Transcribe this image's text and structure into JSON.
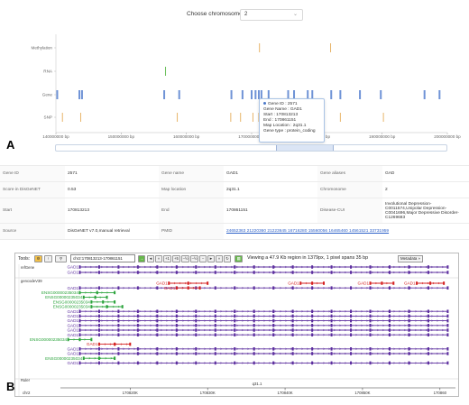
{
  "chrom_select": {
    "label": "Choose chromosome",
    "value": "2"
  },
  "tracks": [
    {
      "name": "Methylation",
      "color": "#e8b56a",
      "marks": [
        {
          "x": 171.2,
          "h": 1
        },
        {
          "x": 182.1,
          "h": 1
        }
      ]
    },
    {
      "name": "RNA",
      "color": "#6cc05b",
      "marks": [
        {
          "x": 156.8,
          "h": 1
        }
      ]
    },
    {
      "name": "Gene",
      "color": "#6f93d6",
      "marks": [
        {
          "x": 140.2,
          "h": 1
        },
        {
          "x": 143.6,
          "h": 1
        },
        {
          "x": 144.0,
          "h": 1
        },
        {
          "x": 156.6,
          "h": 1
        },
        {
          "x": 158.9,
          "h": 1
        },
        {
          "x": 166.9,
          "h": 1
        },
        {
          "x": 168.6,
          "h": 1
        },
        {
          "x": 170.0,
          "h": 1
        },
        {
          "x": 170.6,
          "h": 1
        },
        {
          "x": 171.1,
          "h": 1
        },
        {
          "x": 171.5,
          "h": 1
        },
        {
          "x": 172.6,
          "h": 1
        },
        {
          "x": 175.6,
          "h": 1
        },
        {
          "x": 176.5,
          "h": 1
        },
        {
          "x": 178.6,
          "h": 1
        },
        {
          "x": 179.3,
          "h": 1
        },
        {
          "x": 182.2,
          "h": 1
        },
        {
          "x": 183.6,
          "h": 1
        },
        {
          "x": 186.6,
          "h": 1
        },
        {
          "x": 189.8,
          "h": 1
        },
        {
          "x": 196.5,
          "h": 1
        },
        {
          "x": 198.8,
          "h": 1
        }
      ]
    },
    {
      "name": "SNP",
      "color": "#e8b56a",
      "marks": [
        {
          "x": 141.0,
          "h": 1
        },
        {
          "x": 143.8,
          "h": 1
        },
        {
          "x": 158.6,
          "h": 1
        },
        {
          "x": 166.8,
          "h": 1
        },
        {
          "x": 168.3,
          "h": 1
        },
        {
          "x": 170.2,
          "h": 1
        },
        {
          "x": 171.1,
          "h": 1
        },
        {
          "x": 176.3,
          "h": 1
        },
        {
          "x": 179.4,
          "h": 1
        },
        {
          "x": 183.6,
          "h": 1
        },
        {
          "x": 190.2,
          "h": 1
        }
      ]
    }
  ],
  "axis": {
    "range": [
      140,
      200
    ],
    "ticks": [
      {
        "v": 140,
        "label": "140000000 bp"
      },
      {
        "v": 150,
        "label": "150000000 bp"
      },
      {
        "v": 160,
        "label": "160000000 bp"
      },
      {
        "v": 170,
        "label": "170000000 bp"
      },
      {
        "v": 180,
        "label": "180000000 bp"
      },
      {
        "v": 190,
        "label": "190000000 bp"
      },
      {
        "v": 200,
        "label": "200000000 bp"
      }
    ]
  },
  "tooltip": {
    "gene_id": "Gene ID : 2571",
    "gene_name": "Gene Name : GAD1",
    "start": "Start : 170813213",
    "end": "End : 170861151",
    "map_location": "Map Location : 2q31.1",
    "gene_type": "Gene type : protein_coding"
  },
  "panels": {
    "a": "A",
    "b": "B"
  },
  "info": {
    "gene_id_label": "Gene ID",
    "gene_id": "2571",
    "gene_name_label": "Gene name",
    "gene_name": "GAD1",
    "gene_alias_label": "Gene aliases",
    "gene_alias": "GAD",
    "score_label": "Score in DisGeNET",
    "score": "0.53",
    "map_label": "Map location",
    "map": "2q31.1",
    "chrom_label": "Chromosome",
    "chrom": "2",
    "start_label": "Start",
    "start": "170813213",
    "end_label": "End",
    "end": "170861151",
    "disease_label": "Disease-CUI",
    "disease": "Involutional Depression-C0011574,Unipolar Depression-C0041696,Major Depressive Disorder-C1269683",
    "source_label": "Source",
    "source": "DisGeNET v7.0,manual retrieval",
    "pmid_label": "PMID",
    "pmid": "24652363 21220360 21223645 16716280 15560056 16465460 14561521 33731959"
  },
  "browser": {
    "tools_label": "Tools:",
    "coord": "chr2:170813213-170861151",
    "viewing": "Viewing a 47.9 Kb region in 1379px, 1 pixel spans 35 bp",
    "metadata": "Metadata »",
    "buttons": [
      "←",
      "◄",
      "«",
      "+1",
      "+5",
      "−½",
      "−½",
      "−",
      "►",
      "»"
    ],
    "colors": {
      "purple": "#5b2d9e",
      "green": "#2aa33b",
      "red": "#d42020"
    },
    "refgene_track": "refGene",
    "gencode_track": "gencodeV39",
    "ruler_track": "Ruler",
    "chrom": "chr2",
    "band": "q31.1",
    "ruler_ticks": [
      {
        "v": 170820,
        "label": "170820K"
      },
      {
        "v": 170830,
        "label": "170830K"
      },
      {
        "v": 170840,
        "label": "170840K"
      },
      {
        "v": 170850,
        "label": "170850K"
      },
      {
        "v": 170860,
        "label": "170860"
      }
    ],
    "refgene": [
      {
        "label": "GAD1",
        "start": 170813.5,
        "end": 170861,
        "color": "purple",
        "row": 0
      },
      {
        "label": "GAD1",
        "start": 170813.5,
        "end": 170861,
        "color": "purple",
        "row": 1
      }
    ],
    "gencode": [
      {
        "label": "GAD1",
        "start": 170825,
        "end": 170830,
        "color": "red",
        "row": 0
      },
      {
        "label": "GAD1",
        "start": 170842,
        "end": 170845,
        "color": "red",
        "row": 0
      },
      {
        "label": "GAD1",
        "start": 170851,
        "end": 170854,
        "color": "red",
        "row": 0
      },
      {
        "label": "GAD1",
        "start": 170857,
        "end": 170860.5,
        "color": "red",
        "row": 0
      },
      {
        "label": "GAD1",
        "start": 170813.5,
        "end": 170861,
        "color": "purple",
        "row": 1
      },
      {
        "label": "GAD1",
        "start": 170826,
        "end": 170829,
        "color": "red",
        "row": 1
      },
      {
        "label": "ENSG00000235034",
        "start": 170813.5,
        "end": 170818,
        "color": "green",
        "row": 2
      },
      {
        "label": "ENSG00000235034",
        "start": 170814,
        "end": 170817,
        "color": "green",
        "row": 3
      },
      {
        "label": "ENSG00000235034",
        "start": 170815,
        "end": 170818,
        "color": "green",
        "row": 4
      },
      {
        "label": "ENSG00000235034",
        "start": 170815,
        "end": 170819,
        "color": "green",
        "row": 5
      },
      {
        "label": "GAD1",
        "start": 170813.5,
        "end": 170861,
        "color": "purple",
        "row": 6
      },
      {
        "label": "GAD1",
        "start": 170813.5,
        "end": 170861,
        "color": "purple",
        "row": 7
      },
      {
        "label": "GAD1",
        "start": 170813.5,
        "end": 170861,
        "color": "purple",
        "row": 8
      },
      {
        "label": "GAD1",
        "start": 170813.5,
        "end": 170861,
        "color": "purple",
        "row": 9
      },
      {
        "label": "GAD1",
        "start": 170813.5,
        "end": 170861,
        "color": "purple",
        "row": 10
      },
      {
        "label": "GAD1",
        "start": 170813.5,
        "end": 170861,
        "color": "purple",
        "row": 11
      },
      {
        "label": "ENSG00000235034",
        "start": 170812,
        "end": 170815,
        "color": "green",
        "row": 12
      },
      {
        "label": "GAD1",
        "start": 170816,
        "end": 170820,
        "color": "red",
        "row": 13
      },
      {
        "label": "GAD1",
        "start": 170813.5,
        "end": 170861,
        "color": "purple",
        "row": 14
      },
      {
        "label": "GAD1",
        "start": 170813.5,
        "end": 170861,
        "color": "purple",
        "row": 15
      },
      {
        "label": "ENSG00000235034",
        "start": 170814,
        "end": 170818,
        "color": "green",
        "row": 16
      },
      {
        "label": "GAD1",
        "start": 170813.5,
        "end": 170861,
        "color": "purple",
        "row": 17
      }
    ]
  }
}
